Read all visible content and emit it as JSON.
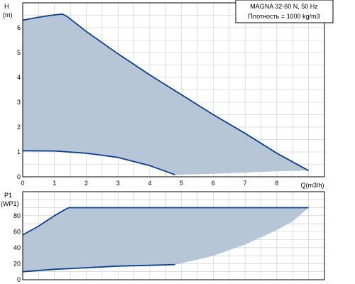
{
  "chart_data": [
    {
      "type": "area",
      "title": "MAGNA 32-60 N, 50 Hz",
      "subtitle": "Плотность = 1000 kg/m3",
      "ylabel": "H",
      "yunit": "(m)",
      "xlabel": "Q(m3/h)",
      "xlim": [
        0,
        9.5
      ],
      "ylim": [
        0,
        7
      ],
      "xticks": [
        "0",
        "1",
        "2",
        "3",
        "4",
        "5",
        "6",
        "7",
        "8"
      ],
      "yticks": [
        "0",
        "1",
        "2",
        "3",
        "4",
        "5",
        "6"
      ],
      "grid": true,
      "series": [
        {
          "role": "max-curve",
          "points": [
            [
              0,
              6.3
            ],
            [
              0.4,
              6.4
            ],
            [
              0.9,
              6.5
            ],
            [
              1.25,
              6.55
            ],
            [
              1.4,
              6.45
            ],
            [
              2.0,
              5.85
            ],
            [
              3.0,
              4.95
            ],
            [
              4.0,
              4.1
            ],
            [
              5.0,
              3.3
            ],
            [
              6.0,
              2.5
            ],
            [
              7.0,
              1.75
            ],
            [
              8.0,
              0.95
            ],
            [
              9.0,
              0.25
            ]
          ]
        },
        {
          "role": "min-curve",
          "points": [
            [
              0,
              1.05
            ],
            [
              1.0,
              1.04
            ],
            [
              2.0,
              0.95
            ],
            [
              3.0,
              0.78
            ],
            [
              4.0,
              0.45
            ],
            [
              4.8,
              0.08
            ]
          ]
        },
        {
          "role": "area-bottom",
          "points": [
            [
              4.8,
              0.08
            ],
            [
              6.0,
              0.12
            ],
            [
              7.0,
              0.17
            ],
            [
              8.0,
              0.22
            ],
            [
              9.0,
              0.25
            ]
          ]
        }
      ]
    },
    {
      "type": "area",
      "ylabel": "P1",
      "yunit": "(WP1)",
      "xlim": [
        0,
        9.5
      ],
      "ylim": [
        0,
        110
      ],
      "yticks": [
        "0",
        "20",
        "40",
        "60",
        "80"
      ],
      "grid": true,
      "series": [
        {
          "role": "max-curve",
          "points": [
            [
              0,
              56
            ],
            [
              0.5,
              67
            ],
            [
              1.0,
              80
            ],
            [
              1.3,
              87
            ],
            [
              1.45,
              90
            ],
            [
              2.0,
              90
            ],
            [
              5.0,
              90
            ],
            [
              8.0,
              90
            ],
            [
              9.0,
              90
            ]
          ]
        },
        {
          "role": "min-curve",
          "points": [
            [
              0,
              10
            ],
            [
              1.0,
              13
            ],
            [
              2.0,
              15
            ],
            [
              3.0,
              17
            ],
            [
              4.0,
              18
            ],
            [
              4.8,
              19
            ]
          ]
        },
        {
          "role": "area-bottom",
          "points": [
            [
              4.8,
              19
            ],
            [
              5.5,
              25
            ],
            [
              6.0,
              30
            ],
            [
              7.0,
              44
            ],
            [
              8.0,
              62
            ],
            [
              8.5,
              73
            ],
            [
              9.0,
              90
            ]
          ]
        }
      ]
    }
  ],
  "colors": {
    "area_fill": "#b7c6d6",
    "curve": "#0d3f8a",
    "grid": "#c8c8c8",
    "frame": "#000000"
  }
}
